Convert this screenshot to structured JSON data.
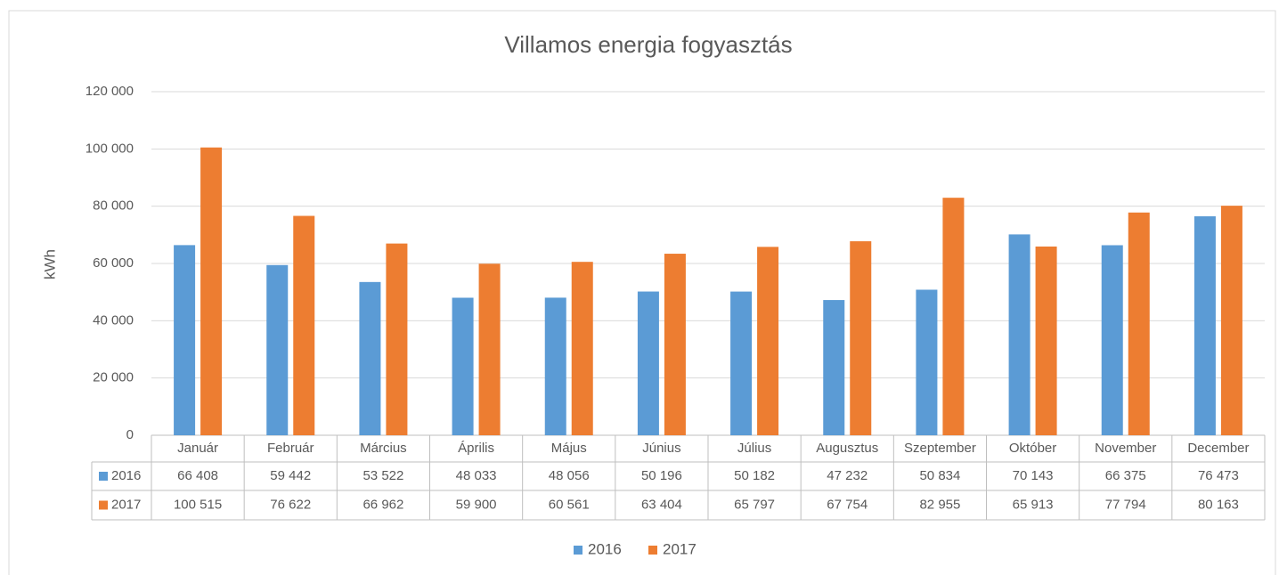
{
  "chart_data": {
    "type": "bar",
    "title": "Villamos energia fogyasztás",
    "y_label": "kWh",
    "categories": [
      "Január",
      "Február",
      "Március",
      "Április",
      "Május",
      "Június",
      "Július",
      "Augusztus",
      "Szeptember",
      "Október",
      "November",
      "December"
    ],
    "series": [
      {
        "name": "2016",
        "color": "#5b9bd5",
        "values": [
          66408,
          59442,
          53522,
          48033,
          48056,
          50196,
          50182,
          47232,
          50834,
          70143,
          66375,
          76473
        ],
        "value_labels": [
          "66 408",
          "59 442",
          "53 522",
          "48 033",
          "48 056",
          "50 196",
          "50 182",
          "47 232",
          "50 834",
          "70 143",
          "66 375",
          "76 473"
        ]
      },
      {
        "name": "2017",
        "color": "#ed7d31",
        "values": [
          100515,
          76622,
          66962,
          59900,
          60561,
          63404,
          65797,
          67754,
          82955,
          65913,
          77794,
          80163
        ],
        "value_labels": [
          "100 515",
          "76 622",
          "66 962",
          "59 900",
          "60 561",
          "63 404",
          "65 797",
          "67 754",
          "82 955",
          "65 913",
          "77 794",
          "80 163"
        ]
      }
    ],
    "ylim": [
      0,
      120000
    ],
    "yticks": [
      0,
      {
        "value": 20000,
        "label": "20 000"
      },
      {
        "value": 40000,
        "label": "40 000"
      },
      {
        "value": 60000,
        "label": "60 000"
      },
      {
        "value": 80000,
        "label": "80 000"
      },
      {
        "value": 100000,
        "label": "100 000"
      },
      {
        "value": 120000,
        "label": "120 000"
      }
    ],
    "grid": true,
    "legend": "bottom"
  }
}
